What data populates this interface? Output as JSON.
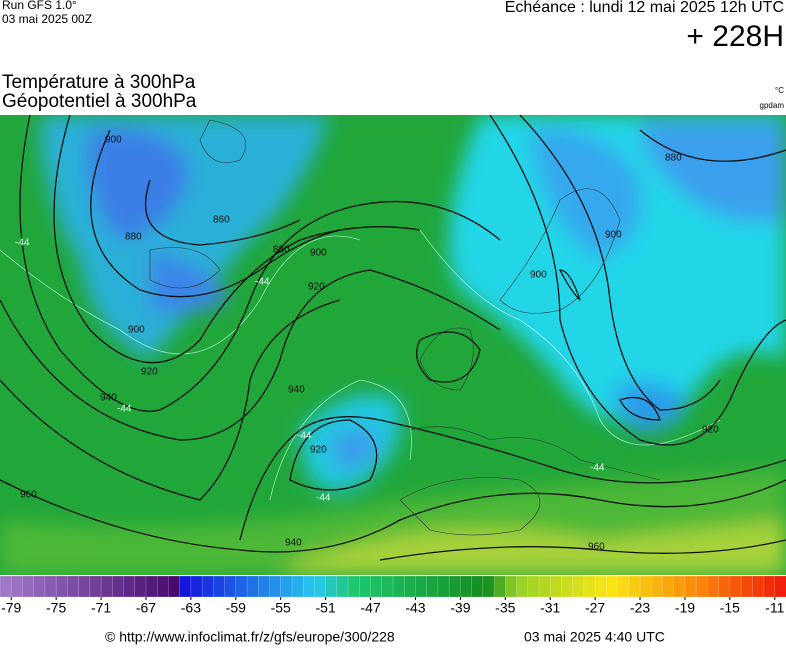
{
  "header": {
    "run": "Run GFS 1.0°",
    "run_date": "03 mai 2025 00Z",
    "valid": "Echéance : lundi 12 mai 2025 12h UTC",
    "lead": "+ 228H",
    "title_temp": "Température à 300hPa",
    "title_geo": "Géopotentiel à 300hPa",
    "unit_temp": "°C",
    "unit_geo": "gpdam"
  },
  "map": {
    "contour_labels": [
      900,
      880,
      860,
      880,
      900,
      920,
      900,
      920,
      940,
      960,
      940,
      920,
      940,
      960,
      900,
      880,
      900,
      920
    ],
    "isotherm_labels": [
      -44,
      -44,
      -44,
      -44,
      -44,
      -44
    ]
  },
  "colorbar": {
    "range": [
      -80,
      -10
    ],
    "ticks": [
      -79,
      -75,
      -71,
      -67,
      -63,
      -59,
      -55,
      -51,
      -47,
      -43,
      -39,
      -35,
      -31,
      -27,
      -23,
      -19,
      -15,
      -11
    ]
  },
  "footer": {
    "source": "© http://www.infoclimat.fr/z/gfs/europe/300/228",
    "generated": "03 mai 2025  4:40 UTC"
  }
}
